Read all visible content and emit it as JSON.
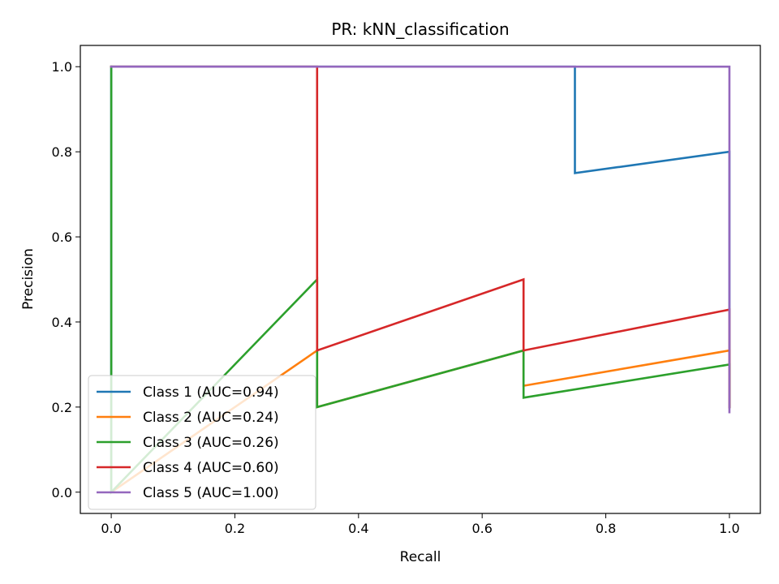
{
  "chart_data": {
    "type": "line",
    "title": "PR: kNN_classification",
    "xlabel": "Recall",
    "ylabel": "Precision",
    "xlim": [
      -0.05,
      1.05
    ],
    "ylim": [
      -0.05,
      1.05
    ],
    "xticks": [
      0.0,
      0.2,
      0.4,
      0.6,
      0.8,
      1.0
    ],
    "yticks": [
      0.0,
      0.2,
      0.4,
      0.6,
      0.8,
      1.0
    ],
    "xtick_labels": [
      "0.0",
      "0.2",
      "0.4",
      "0.6",
      "0.8",
      "1.0"
    ],
    "ytick_labels": [
      "0.0",
      "0.2",
      "0.4",
      "0.6",
      "0.8",
      "1.0"
    ],
    "grid": false,
    "legend_position": "lower-left",
    "series": [
      {
        "name": "Class 1 (AUC=0.94)",
        "color": "#1f77b4",
        "points": [
          [
            0,
            0
          ],
          [
            0,
            1
          ],
          [
            0.75,
            1
          ],
          [
            0.75,
            0.75
          ],
          [
            1,
            0.8
          ],
          [
            1,
            0.2
          ]
        ]
      },
      {
        "name": "Class 2 (AUC=0.24)",
        "color": "#ff7f0e",
        "points": [
          [
            0,
            0
          ],
          [
            0.333,
            0.333
          ],
          [
            0.333,
            0.2
          ],
          [
            0.667,
            0.333
          ],
          [
            0.667,
            0.25
          ],
          [
            1,
            0.333
          ],
          [
            1,
            0.2
          ]
        ]
      },
      {
        "name": "Class 3 (AUC=0.26)",
        "color": "#2ca02c",
        "points": [
          [
            0,
            1
          ],
          [
            0,
            0
          ],
          [
            0.333,
            0.5
          ],
          [
            0.333,
            0.2
          ],
          [
            0.667,
            0.333
          ],
          [
            0.667,
            0.222
          ],
          [
            1,
            0.3
          ],
          [
            1,
            0.2
          ]
        ]
      },
      {
        "name": "Class 4 (AUC=0.60)",
        "color": "#d62728",
        "points": [
          [
            0,
            1
          ],
          [
            0.333,
            1
          ],
          [
            0.333,
            0.333
          ],
          [
            0.667,
            0.5
          ],
          [
            0.667,
            0.333
          ],
          [
            1,
            0.429
          ],
          [
            1,
            0.2
          ]
        ]
      },
      {
        "name": "Class 5 (AUC=1.00)",
        "color": "#9467bd",
        "points": [
          [
            0,
            1
          ],
          [
            1,
            1
          ],
          [
            1,
            0.188
          ]
        ]
      }
    ]
  }
}
